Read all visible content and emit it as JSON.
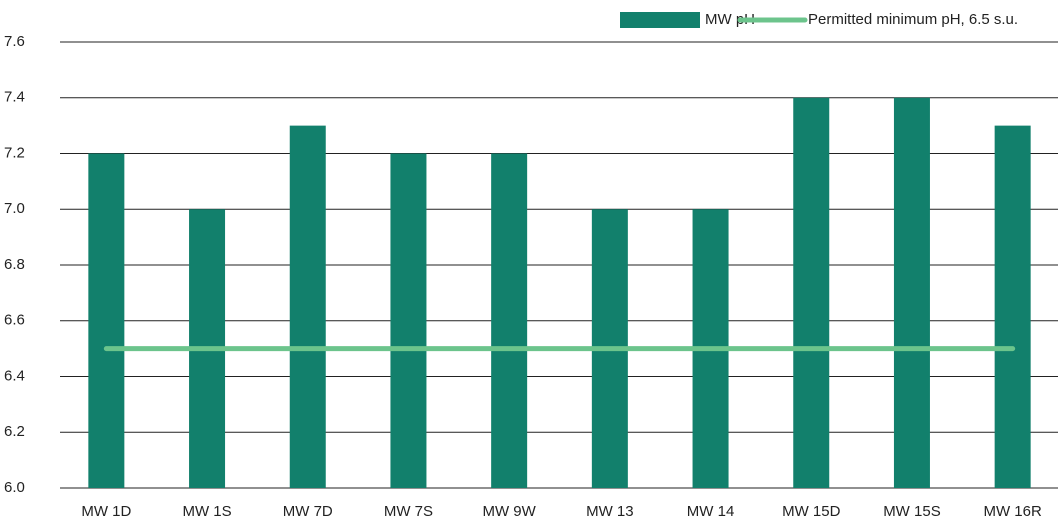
{
  "chart_data": {
    "type": "bar",
    "categories": [
      "MW 1D",
      "MW 1S",
      "MW 7D",
      "MW 7S",
      "MW 9W",
      "MW 13",
      "MW 14",
      "MW 15D",
      "MW 15S",
      "MW 16R"
    ],
    "series": [
      {
        "name": "MW pH",
        "type": "bar",
        "color": "#12806c",
        "values": [
          7.2,
          7.0,
          7.3,
          7.2,
          7.2,
          7.0,
          7.0,
          7.4,
          7.4,
          7.3
        ]
      },
      {
        "name": "Permitted minimum pH, 6.5 s.u.",
        "type": "line",
        "color": "#6cc48c",
        "values": [
          6.5,
          6.5,
          6.5,
          6.5,
          6.5,
          6.5,
          6.5,
          6.5,
          6.5,
          6.5
        ]
      }
    ],
    "ylim": [
      6.0,
      7.6
    ],
    "yticks": [
      {
        "value": 6.0,
        "label": "6.0"
      },
      6.2,
      6.4,
      6.6,
      6.8,
      {
        "value": 7.0,
        "label": "7.0"
      },
      7.2,
      7.4,
      7.6
    ],
    "grid": true,
    "legend": "top-right"
  }
}
